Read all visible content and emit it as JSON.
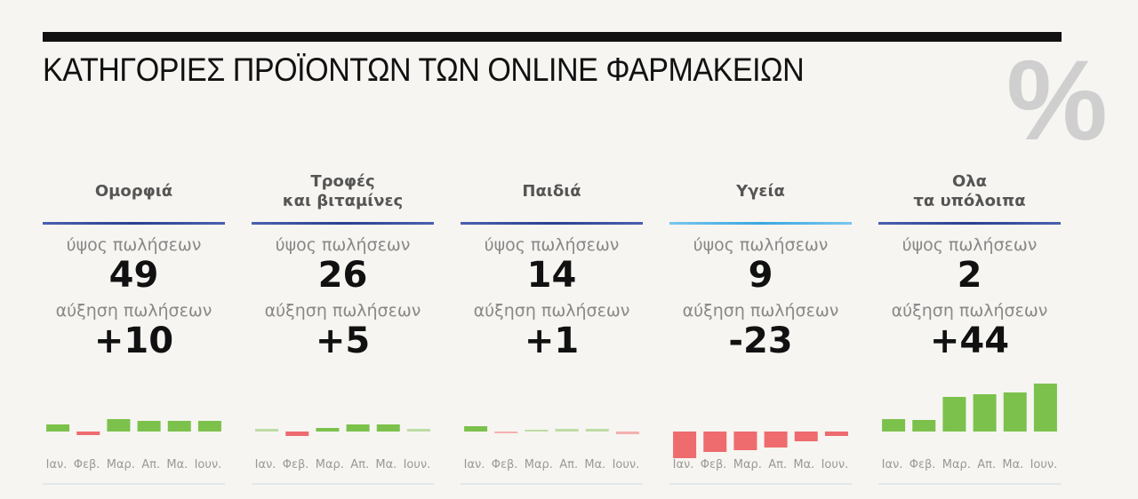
{
  "title": "ΚΑΤΗΓΟΡΙΕΣ ΠΡΟΪΟΝΤΩΝ ΤΩΝ ONLINE ΦΑΡΜΑΚΕΙΩΝ",
  "percent_symbol": "%",
  "colors": {
    "positive": "#7cc14c",
    "positive_light": "#bcdca4",
    "negative": "#ee6b6e",
    "negative_light": "#f3b0b0"
  },
  "chart_data": [
    {
      "type": "bar",
      "title": "Ομορφιά",
      "sales_label": "ύψος πωλήσεων",
      "sales": "49",
      "growth_label": "αύξηση πωλήσεων",
      "growth": "+10",
      "categories": [
        "Ιαν.",
        "Φεβ.",
        "Μαρ.",
        "Απ.",
        "Μα.",
        "Ιουν."
      ],
      "values": [
        8,
        -4,
        14,
        12,
        12,
        12
      ]
    },
    {
      "type": "bar",
      "title": "Τροφές\nκαι βιταμίνες",
      "sales_label": "ύψος πωλήσεων",
      "sales": "26",
      "growth_label": "αύξηση πωλήσεων",
      "growth": "+5",
      "categories": [
        "Ιαν.",
        "Φεβ.",
        "Μαρ.",
        "Απ.",
        "Μα.",
        "Ιουν."
      ],
      "values": [
        3,
        -5,
        4,
        8,
        8,
        3
      ]
    },
    {
      "type": "bar",
      "title": "Παιδιά",
      "sales_label": "ύψος πωλήσεων",
      "sales": "14",
      "growth_label": "αύξηση πωλήσεων",
      "growth": "+1",
      "categories": [
        "Ιαν.",
        "Φεβ.",
        "Μαρ.",
        "Απ.",
        "Μα.",
        "Ιουν."
      ],
      "values": [
        6,
        -1,
        0,
        3,
        3,
        -3
      ]
    },
    {
      "type": "bar",
      "title": "Υγεία",
      "sales_label": "ύψος πωλήσεων",
      "sales": "9",
      "growth_label": "αύξηση πωλήσεων",
      "growth": "-23",
      "categories": [
        "Ιαν.",
        "Φεβ.",
        "Μαρ.",
        "Απ.",
        "Μα.",
        "Ιουν."
      ],
      "values": [
        -30,
        -23,
        -21,
        -18,
        -11,
        -5
      ]
    },
    {
      "type": "bar",
      "title": "Ολα\nτα υπόλοιπα",
      "sales_label": "ύψος πωλήσεων",
      "sales": "2",
      "growth_label": "αύξηση πωλήσεων",
      "growth": "+44",
      "categories": [
        "Ιαν.",
        "Φεβ.",
        "Μαρ.",
        "Απ.",
        "Μα.",
        "Ιουν."
      ],
      "values": [
        14,
        13,
        39,
        42,
        44,
        54
      ]
    }
  ]
}
